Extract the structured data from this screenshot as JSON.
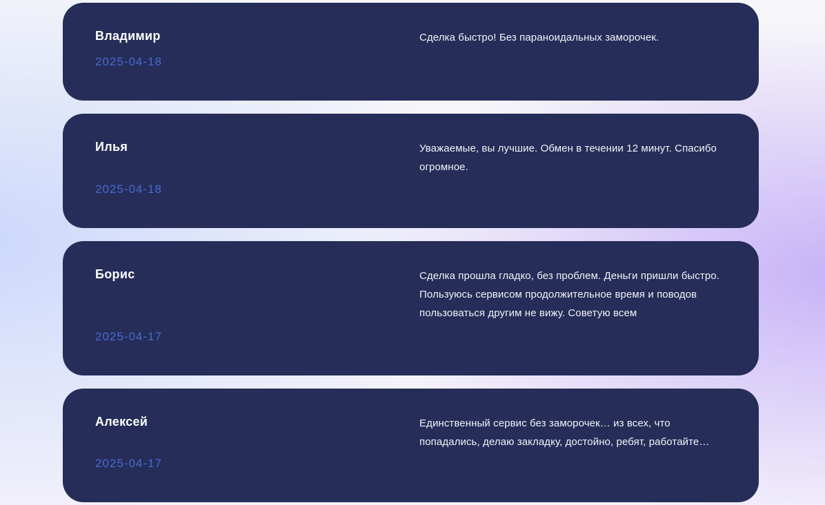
{
  "colors": {
    "card_bg": "#252d58",
    "name_text": "#ffffff",
    "date_text": "#4a69d4",
    "review_text": "#f2f3f8",
    "bg_base_top": "#f7f7f9",
    "bg_base_bottom": "#f4f2fb",
    "bg_left_tint": "#ccd8fb",
    "bg_right_tint": "#c7b3f7"
  },
  "reviews": [
    {
      "name": "Владимир",
      "date": "2025-04-18",
      "text": "Сделка быстро! Без параноидальных заморочек."
    },
    {
      "name": "Илья",
      "date": "2025-04-18",
      "text": "Уважаемые, вы лучшие. Обмен в течении 12 минут. Спасибо огромное."
    },
    {
      "name": "Борис",
      "date": "2025-04-17",
      "text": "Сделка прошла гладко, без проблем. Деньги пришли быстро. Пользуюсь сервисом продолжительное время и поводов пользоваться другим не вижу. Советую всем"
    },
    {
      "name": "Алексей",
      "date": "2025-04-17",
      "text": "Единственный сервис без заморочек… из всех, что попадались, делаю закладку, достойно, ребят, работайте…"
    }
  ]
}
